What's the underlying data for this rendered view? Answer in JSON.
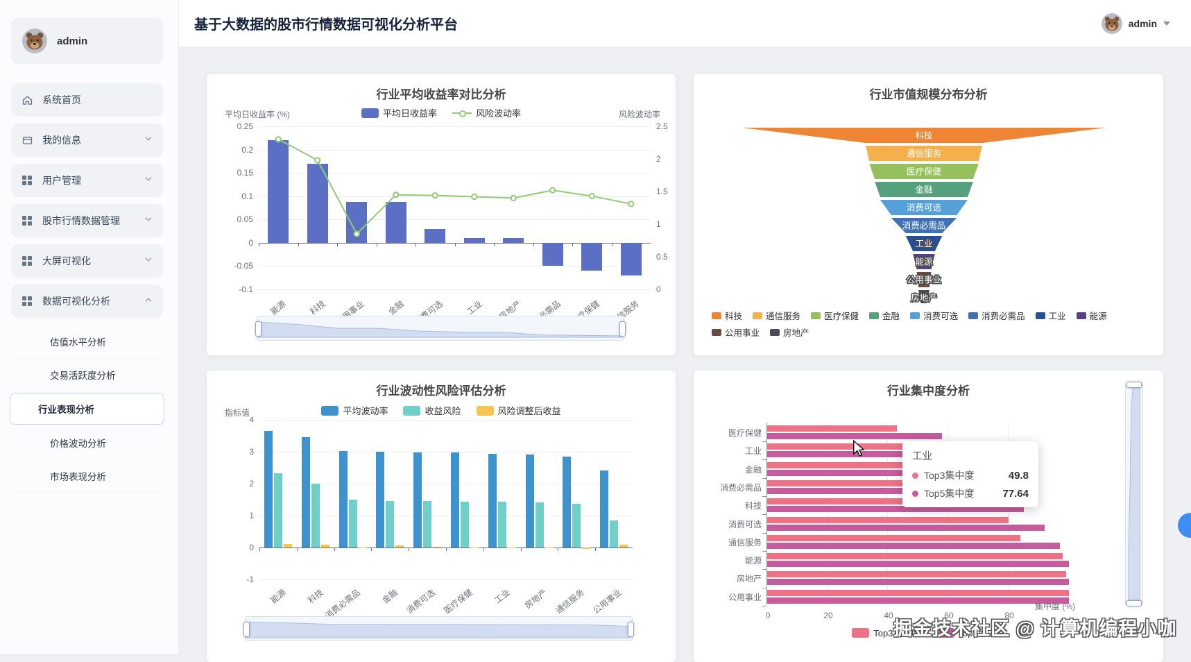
{
  "header": {
    "title": "基于大数据的股市行情数据可视化分析平台",
    "username": "admin"
  },
  "sidebar": {
    "username": "admin",
    "menu": [
      {
        "label": "系统首页",
        "icon": "home-icon",
        "chevron": null
      },
      {
        "label": "我的信息",
        "icon": "id-card-icon",
        "chevron": "down"
      },
      {
        "label": "用户管理",
        "icon": "grid-icon",
        "chevron": "down"
      },
      {
        "label": "股市行情数据管理",
        "icon": "grid-icon",
        "chevron": "down"
      },
      {
        "label": "大屏可视化",
        "icon": "grid-icon",
        "chevron": "down"
      },
      {
        "label": "数据可视化分析",
        "icon": "grid-icon",
        "chevron": "up"
      }
    ],
    "submenu": [
      {
        "label": "估值水平分析",
        "active": false
      },
      {
        "label": "交易活跃度分析",
        "active": false
      },
      {
        "label": "行业表现分析",
        "active": true
      },
      {
        "label": "价格波动分析",
        "active": false
      },
      {
        "label": "市场表现分析",
        "active": false
      }
    ]
  },
  "watermark": "掘金技术社区 @ 计算机编程小咖",
  "chart_data": [
    {
      "id": "industry-return",
      "type": "bar",
      "title": "行业平均收益率对比分析",
      "categories": [
        "能源",
        "科技",
        "公用事业",
        "金融",
        "消费可选",
        "工业",
        "房地产",
        "消费必需品",
        "医疗保健",
        "通信服务"
      ],
      "series": [
        {
          "name": "平均日收益率",
          "type": "bar",
          "axis": "left",
          "color": "#5b70c5",
          "values": [
            0.22,
            0.17,
            0.088,
            0.088,
            0.03,
            0.01,
            0.01,
            -0.05,
            -0.06,
            -0.07
          ]
        },
        {
          "name": "风险波动率",
          "type": "line",
          "axis": "right",
          "color": "#91cc75",
          "values": [
            2.3,
            1.98,
            0.85,
            1.45,
            1.44,
            1.42,
            1.4,
            1.52,
            1.43,
            1.31
          ]
        }
      ],
      "left_axis": {
        "name": "平均日收益率 (%)",
        "min": -0.1,
        "max": 0.25,
        "ticks": [
          0.25,
          0.2,
          0.15,
          0.1,
          0.05,
          0,
          -0.05,
          -0.1
        ]
      },
      "right_axis": {
        "name": "风险波动率",
        "min": 0,
        "max": 2.5,
        "ticks": [
          2.5,
          2,
          1.5,
          1,
          0.5,
          0
        ]
      },
      "datazoom": "horizontal",
      "legend_position": "top",
      "grid": true
    },
    {
      "id": "marketcap-funnel",
      "type": "pie",
      "title": "行业市值规模分布分析",
      "note": "funnel chart, values estimated from layer widths (no numeric labels shown)",
      "items": [
        {
          "label": "科技",
          "value": 100,
          "color": "#ee8535"
        },
        {
          "label": "通信服务",
          "value": 32,
          "color": "#f5b04e"
        },
        {
          "label": "医疗保健",
          "value": 30,
          "color": "#95c05b"
        },
        {
          "label": "金融",
          "value": 27,
          "color": "#55a07d"
        },
        {
          "label": "消费可选",
          "value": 24,
          "color": "#55a0d8"
        },
        {
          "label": "消费必需品",
          "value": 18,
          "color": "#3e72b4"
        },
        {
          "label": "工业",
          "value": 10,
          "color": "#274f97"
        },
        {
          "label": "能源",
          "value": 6,
          "color": "#593f85"
        },
        {
          "label": "公用事业",
          "value": 4,
          "color": "#6a4a42"
        },
        {
          "label": "房地产",
          "value": 3,
          "color": "#4c4c55"
        }
      ],
      "legend_rows": [
        [
          "科技",
          "通信服务",
          "医疗保健",
          "金融",
          "消费可选",
          "消费必需品",
          "工业",
          "能源"
        ],
        [
          "公用事业",
          "房地产"
        ]
      ],
      "legend_position": "bottom"
    },
    {
      "id": "volatility-risk",
      "type": "bar",
      "title": "行业波动性风险评估分析",
      "categories": [
        "能源",
        "科技",
        "消费必需品",
        "金融",
        "消费可选",
        "医疗保健",
        "工业",
        "房地产",
        "通信服务",
        "公用事业"
      ],
      "series": [
        {
          "name": "平均波动率",
          "color": "#3d93cf",
          "values": [
            3.65,
            3.45,
            3.02,
            3.01,
            2.98,
            2.97,
            2.93,
            2.91,
            2.85,
            2.41
          ]
        },
        {
          "name": "收益风险",
          "color": "#6fd0ca",
          "values": [
            2.32,
            2.01,
            1.5,
            1.46,
            1.45,
            1.43,
            1.43,
            1.42,
            1.37,
            0.85
          ]
        },
        {
          "name": "风险调整后收益",
          "color": "#f6c64c",
          "values": [
            0.1,
            0.09,
            -0.02,
            0.07,
            0.03,
            -0.02,
            0.01,
            0.01,
            -0.04,
            0.08
          ]
        }
      ],
      "y_axis": {
        "name": "指标值",
        "min": -1,
        "max": 4,
        "ticks": [
          4,
          3,
          2,
          1,
          0,
          -1
        ]
      },
      "datazoom": "horizontal",
      "legend_position": "top",
      "grid": true
    },
    {
      "id": "industry-concentration",
      "type": "bar",
      "title": "行业集中度分析",
      "orientation": "horizontal",
      "categories": [
        "医疗保健",
        "工业",
        "金融",
        "消费必需品",
        "科技",
        "消费可选",
        "通信服务",
        "能源",
        "房地产",
        "公用事业"
      ],
      "series": [
        {
          "name": "Top3集中度",
          "color": "#ee7286",
          "values": [
            43,
            49.8,
            53,
            57,
            74,
            80,
            84,
            98,
            99,
            100
          ]
        },
        {
          "name": "Top5集中度",
          "color": "#c75b9e",
          "values": [
            58,
            77.64,
            79,
            84,
            85,
            92,
            97,
            100,
            100,
            100
          ]
        }
      ],
      "x_axis": {
        "name": "集中度 (%)",
        "min": 0,
        "max": 100,
        "ticks": [
          0,
          20,
          40,
          60,
          80
        ]
      },
      "tooltip": {
        "title": "工业",
        "rows": [
          {
            "name": "Top3集中度",
            "value": "49.8",
            "color": "#ee7286"
          },
          {
            "name": "Top5集中度",
            "value": "77.64",
            "color": "#c75b9e"
          }
        ]
      },
      "datazoom": "vertical",
      "legend_position": "bottom",
      "grid": true
    }
  ]
}
